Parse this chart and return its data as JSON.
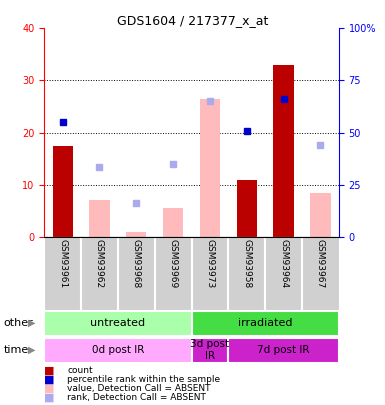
{
  "title": "GDS1604 / 217377_x_at",
  "samples": [
    "GSM93961",
    "GSM93962",
    "GSM93968",
    "GSM93969",
    "GSM93973",
    "GSM93958",
    "GSM93964",
    "GSM93967"
  ],
  "count_values": [
    17.5,
    0,
    0,
    0,
    0,
    11,
    33,
    0
  ],
  "value_absent": [
    0,
    7,
    1,
    5.5,
    26.5,
    0,
    0,
    8.5
  ],
  "rank_absent_pct": [
    0,
    33.5,
    16.5,
    35,
    0,
    0,
    0,
    44
  ],
  "percentile_rank_pct": [
    55,
    0,
    0,
    0,
    0,
    51,
    66,
    0
  ],
  "percentile_rank_absent_pct": [
    0,
    0,
    0,
    0,
    65,
    0,
    0,
    0
  ],
  "ylim": [
    0,
    40
  ],
  "y2lim": [
    0,
    100
  ],
  "yticks": [
    0,
    10,
    20,
    30,
    40
  ],
  "ytick_labels": [
    "0",
    "10",
    "20",
    "30",
    "40"
  ],
  "y2ticks": [
    0,
    25,
    50,
    75,
    100
  ],
  "y2tick_labels": [
    "0",
    "25",
    "50",
    "75",
    "100%"
  ],
  "bar_color_count": "#bb0000",
  "bar_color_absent": "#ffbbbb",
  "marker_color_rank": "#0000cc",
  "marker_color_rank_absent": "#aaaaee",
  "other_groups": [
    {
      "label": "untreated",
      "start": 0,
      "end": 4,
      "color": "#aaffaa"
    },
    {
      "label": "irradiated",
      "start": 4,
      "end": 8,
      "color": "#44dd44"
    }
  ],
  "time_groups": [
    {
      "label": "0d post IR",
      "start": 0,
      "end": 4,
      "color": "#ffaaff"
    },
    {
      "label": "3d post\nIR",
      "start": 4,
      "end": 5,
      "color": "#cc22cc"
    },
    {
      "label": "7d post IR",
      "start": 5,
      "end": 8,
      "color": "#cc22cc"
    }
  ],
  "legend_items": [
    {
      "color": "#bb0000",
      "label": "count"
    },
    {
      "color": "#0000cc",
      "label": "percentile rank within the sample"
    },
    {
      "color": "#ffbbbb",
      "label": "value, Detection Call = ABSENT"
    },
    {
      "color": "#aaaaee",
      "label": "rank, Detection Call = ABSENT"
    }
  ]
}
